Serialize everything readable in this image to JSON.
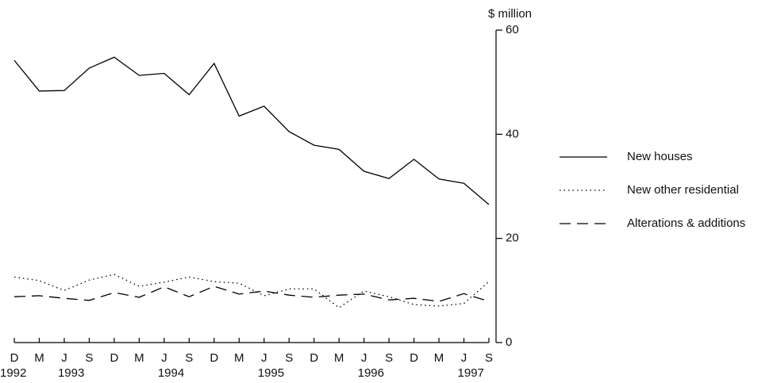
{
  "chart_data": {
    "type": "line",
    "y_unit": "$ million",
    "categories": [
      "D",
      "M",
      "J",
      "S",
      "D",
      "M",
      "J",
      "S",
      "D",
      "M",
      "J",
      "S",
      "D",
      "M",
      "J",
      "S",
      "D",
      "M",
      "J",
      "S"
    ],
    "years": [
      "1992",
      null,
      "1993",
      null,
      null,
      null,
      "1994",
      null,
      null,
      null,
      "1995",
      null,
      null,
      null,
      "1996",
      null,
      null,
      null,
      "1997",
      null
    ],
    "series": [
      {
        "name": "New houses",
        "color": "#000000",
        "dash": "solid",
        "values": [
          54.2,
          48.3,
          48.4,
          52.7,
          54.8,
          51.3,
          51.7,
          47.6,
          53.6,
          43.5,
          45.4,
          40.5,
          37.9,
          37.1,
          32.9,
          31.5,
          35.2,
          31.4,
          30.6,
          26.5
        ]
      },
      {
        "name": "New other residential",
        "color": "#000000",
        "dash": "dotted",
        "values": [
          12.6,
          11.9,
          10.0,
          12.0,
          13.1,
          10.8,
          11.6,
          12.6,
          11.7,
          11.4,
          9.0,
          10.3,
          10.3,
          6.7,
          9.9,
          8.8,
          7.3,
          7.0,
          7.5,
          11.7
        ]
      },
      {
        "name": "Alterations & additions",
        "color": "#000000",
        "dash": "dashed",
        "values": [
          8.8,
          9.0,
          8.5,
          8.1,
          9.6,
          8.7,
          10.7,
          8.8,
          10.8,
          9.3,
          9.9,
          9.1,
          8.7,
          9.1,
          9.3,
          8.2,
          8.5,
          7.9,
          9.4,
          7.9
        ]
      }
    ],
    "ylim": [
      0,
      60
    ],
    "yticks": [
      0,
      20,
      40,
      60
    ],
    "grid": false,
    "legend": "right"
  }
}
